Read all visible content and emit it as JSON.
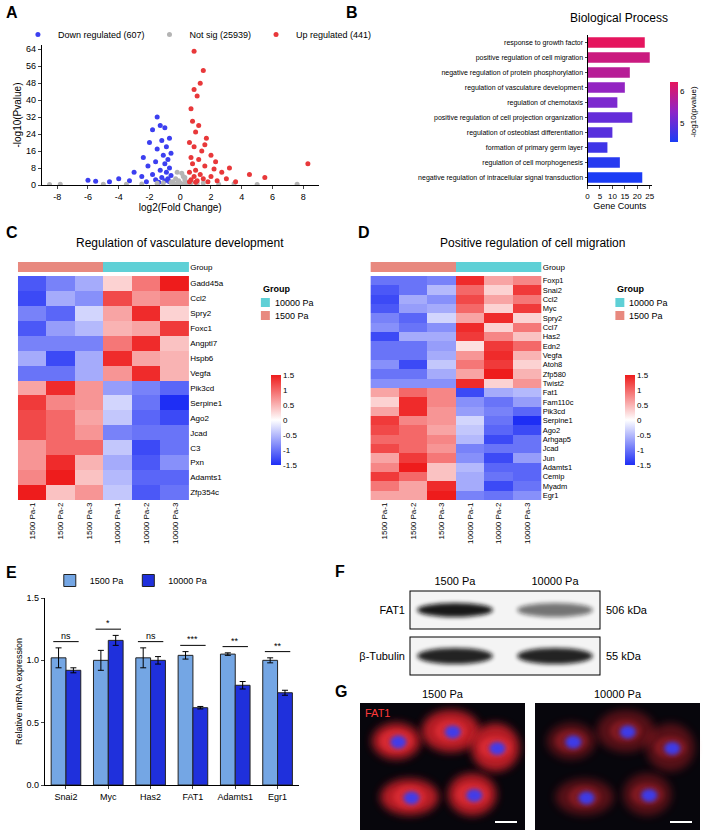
{
  "chart_data": [
    {
      "panel": "A",
      "type": "scatter",
      "x_label": "log2(Fold Change)",
      "y_label": "-log10(Pvalue)",
      "xlim": [
        -9,
        9
      ],
      "xticks": [
        -8,
        -6,
        -4,
        -2,
        0,
        2,
        4,
        6,
        8
      ],
      "ylim": [
        0,
        66
      ],
      "yticks": [
        0,
        8,
        16,
        24,
        32,
        40,
        48,
        56,
        64
      ],
      "legend": "top",
      "series": [
        {
          "name": "Down regulated (607)",
          "color": "#3c3ff0",
          "x": [
            -1.5,
            -1.3,
            -1.0,
            -1.8,
            -0.7,
            -1.2,
            -2.0,
            -0.9,
            -1.5,
            -0.6,
            -1.1,
            -2.4,
            -0.8,
            -1.6,
            -1.0,
            -2.1,
            -0.7,
            -1.3,
            -3.0,
            -0.9,
            -1.8,
            -0.6,
            -2.5,
            -1.2,
            -4.0,
            -0.8,
            -1.6,
            -3.3,
            -5.5,
            -6.0,
            -1.0,
            -0.7,
            -2.2,
            -1.4,
            -4.6
          ],
          "values": [
            32,
            28,
            27,
            26,
            22,
            21,
            20,
            18,
            17,
            15,
            14,
            13,
            12,
            11,
            10,
            9,
            8,
            7,
            6,
            6,
            5,
            4.5,
            4,
            3.5,
            3,
            3,
            2.5,
            2,
            1.8,
            2.2,
            2,
            1.5,
            1.5,
            1.3,
            1.5
          ]
        },
        {
          "name": "Not sig (25939)",
          "color": "#b4b4b4",
          "x": [
            -0.3,
            0.2,
            -0.1,
            0.4,
            -0.5,
            0.1,
            -0.2,
            0.3,
            0.5,
            -0.4,
            0,
            0.2,
            -1.5,
            1.5,
            -2.5,
            2.5,
            -3.5,
            3.5,
            -8.5,
            -7.8,
            7.6,
            -5,
            5,
            -0.6,
            0.7,
            -1.1,
            1.1,
            0.1,
            -0.2,
            0.3
          ],
          "values": [
            3,
            4,
            2,
            1,
            1.5,
            0.5,
            0.8,
            2.5,
            0.6,
            0.4,
            1,
            0.2,
            0.8,
            0.9,
            0.5,
            0.4,
            0.3,
            0.6,
            0.2,
            0.3,
            0.3,
            0.3,
            0.2,
            1.2,
            1.1,
            0.9,
            0.7,
            5.5,
            6,
            3.5
          ]
        },
        {
          "name": "Up regulated (441)",
          "color": "#e8383a",
          "x": [
            0.9,
            1.5,
            1.3,
            0.9,
            1.1,
            0.7,
            0.8,
            1.2,
            1.0,
            1.7,
            0.6,
            0.9,
            1.4,
            2.0,
            0.7,
            1.2,
            2.3,
            0.8,
            1.6,
            3.2,
            1.0,
            0.6,
            2.7,
            1.3,
            4.5,
            0.9,
            2.0,
            1.5,
            3.0,
            0.7,
            1.1,
            2.4,
            0.6,
            1.8,
            8.3,
            3.6,
            1.0,
            5.5,
            2.2,
            1.6
          ],
          "values": [
            63,
            54,
            48,
            45,
            42,
            36,
            30,
            28,
            25,
            22,
            20,
            18,
            16,
            14,
            13,
            12,
            11,
            10,
            9,
            8,
            7,
            6,
            6,
            5,
            5,
            4,
            4,
            3,
            3,
            2.5,
            2,
            2,
            1.5,
            1.5,
            10,
            1.5,
            1.3,
            3.5,
            7.5,
            19
          ]
        }
      ]
    },
    {
      "panel": "B",
      "type": "bar",
      "orientation": "horizontal",
      "title": "Biological Process",
      "x_label": "Gene Counts",
      "categories": [
        "response to growth factor",
        "positive regulation of cell migration",
        "negative regulation of protein phosphorylation",
        "regulation of vasculature development",
        "regulation of chemotaxis",
        "positive regulation of cell projection organization",
        "regulation of osteoblast differentiation",
        "formation of primary germ layer",
        "regulation of cell morphogenesis",
        "negative regulation of intracellular signal transduction"
      ],
      "values": [
        23,
        25,
        17,
        15,
        12,
        18,
        10,
        8,
        13,
        22
      ],
      "color_values": [
        6.3,
        6.0,
        5.8,
        5.4,
        5.2,
        5.0,
        4.9,
        4.7,
        4.5,
        4.4
      ],
      "colorbar": {
        "title": "-log10(pvalue)",
        "range": [
          4.4,
          6.3
        ],
        "ticks": [
          5,
          6
        ]
      },
      "xlim": [
        0,
        26
      ],
      "xticks": [
        0,
        5,
        10,
        15,
        20,
        25
      ]
    },
    {
      "panel": "C",
      "type": "heatmap",
      "title": "Regulation of vasculature development",
      "rows": [
        "Gadd45a",
        "Ccl2",
        "Spry2",
        "Foxc1",
        "Angptl7",
        "Hspb6",
        "Vegfa",
        "Pik3cd",
        "Serpine1",
        "Ago2",
        "Jcad",
        "C3",
        "Pxn",
        "Adamts1",
        "Zfp354c"
      ],
      "columns": [
        "1500 Pa-1",
        "1500 Pa-2",
        "1500 Pa-3",
        "10000 Pa-1",
        "10000 Pa-2",
        "10000 Pa-3"
      ],
      "cells": [
        [
          -1.2,
          -0.9,
          -0.6,
          0.3,
          0.9,
          1.5
        ],
        [
          -1.3,
          -0.6,
          -0.8,
          1.2,
          0.7,
          0.8
        ],
        [
          -0.9,
          -1.1,
          -0.3,
          0.6,
          1.4,
          0.3
        ],
        [
          -1.2,
          -0.7,
          -0.5,
          0.5,
          0.6,
          1.3
        ],
        [
          -0.9,
          -0.9,
          -0.9,
          0.9,
          1.4,
          0.4
        ],
        [
          -0.6,
          -1.3,
          -0.6,
          1.4,
          0.6,
          0.5
        ],
        [
          -1.0,
          -1.0,
          -0.6,
          0.7,
          1.4,
          0.5
        ],
        [
          0.6,
          1.4,
          0.7,
          -0.7,
          -0.9,
          -1.1
        ],
        [
          1.3,
          0.8,
          0.7,
          -0.3,
          -1.0,
          -1.5
        ],
        [
          1.2,
          1.0,
          0.6,
          -0.4,
          -1.1,
          -1.3
        ],
        [
          1.2,
          1.0,
          0.7,
          -0.9,
          -1.0,
          -1.0
        ],
        [
          0.7,
          1.0,
          1.0,
          -0.4,
          -1.3,
          -1.0
        ],
        [
          0.7,
          1.4,
          0.5,
          -0.6,
          -1.2,
          -0.8
        ],
        [
          0.8,
          1.5,
          0.4,
          -0.5,
          -1.1,
          -1.1
        ],
        [
          1.5,
          0.4,
          0.7,
          -0.4,
          -1.2,
          -1.0
        ]
      ],
      "colorbar": {
        "range": [
          -1.5,
          1.5
        ],
        "ticks": [
          -1.5,
          -1,
          -0.5,
          0,
          0.5,
          1,
          1.5
        ]
      },
      "group_title": "Group",
      "column_groups": [
        "1500 Pa",
        "1500 Pa",
        "1500 Pa",
        "10000 Pa",
        "10000 Pa",
        "10000 Pa"
      ],
      "group_legend": [
        {
          "name": "10000 Pa",
          "color": "#5fd0d6"
        },
        {
          "name": "1500 Pa",
          "color": "#e8897f"
        }
      ]
    },
    {
      "panel": "D",
      "type": "heatmap",
      "title": "Positive regulation of cell migration",
      "rows": [
        "Foxp1",
        "Snai2",
        "Ccl2",
        "Myc",
        "Spry2",
        "Ccl7",
        "Has2",
        "Edn2",
        "Vegfa",
        "Atoh8",
        "Zfp580",
        "Twist2",
        "Fat1",
        "Fam110c",
        "Pik3cd",
        "Serpine1",
        "Ago2",
        "Arhgap5",
        "Jcad",
        "Jun",
        "Adamts1",
        "Cemip",
        "Myadm",
        "Egr1"
      ],
      "columns": [
        "1500 Pa-1",
        "1500 Pa-2",
        "1500 Pa-3",
        "10000 Pa-1",
        "10000 Pa-2",
        "10000 Pa-3"
      ],
      "cells": [
        [
          -1.0,
          -1.0,
          -0.9,
          1.4,
          0.6,
          0.8
        ],
        [
          -1.2,
          -1.0,
          -0.5,
          1.0,
          0.3,
          1.3
        ],
        [
          -1.3,
          -0.6,
          -0.8,
          1.2,
          0.6,
          0.9
        ],
        [
          -1.2,
          -0.7,
          -0.6,
          1.0,
          0.3,
          1.3
        ],
        [
          -0.9,
          -1.1,
          -0.3,
          0.6,
          1.4,
          0.3
        ],
        [
          -0.8,
          -1.0,
          -0.8,
          1.4,
          0.3,
          0.9
        ],
        [
          -1.3,
          -0.6,
          -0.6,
          1.3,
          0.8,
          0.4
        ],
        [
          -1.0,
          -1.0,
          -0.7,
          0.2,
          1.3,
          1.0
        ],
        [
          -1.0,
          -1.0,
          -0.6,
          0.7,
          1.4,
          0.5
        ],
        [
          -0.8,
          -1.3,
          -0.4,
          0.9,
          1.3,
          0.3
        ],
        [
          -1.0,
          -1.0,
          -0.6,
          0.6,
          1.5,
          0.5
        ],
        [
          -0.8,
          -0.8,
          -0.8,
          1.4,
          0.3,
          0.7
        ],
        [
          0.6,
          1.0,
          0.8,
          -1.3,
          -0.6,
          -0.5
        ],
        [
          0.3,
          1.4,
          0.8,
          -0.8,
          -1.0,
          -0.7
        ],
        [
          0.6,
          1.4,
          0.7,
          -0.7,
          -0.9,
          -1.1
        ],
        [
          1.3,
          0.8,
          0.7,
          -0.3,
          -1.0,
          -1.5
        ],
        [
          1.2,
          1.0,
          0.6,
          -0.4,
          -1.1,
          -1.3
        ],
        [
          1.0,
          1.0,
          0.8,
          -0.5,
          -1.3,
          -1.0
        ],
        [
          1.2,
          1.0,
          0.7,
          -0.9,
          -1.0,
          -1.0
        ],
        [
          0.6,
          1.3,
          0.9,
          -0.8,
          -1.3,
          -0.7
        ],
        [
          0.8,
          1.5,
          0.4,
          -0.5,
          -1.1,
          -1.1
        ],
        [
          1.3,
          1.0,
          0.4,
          -0.6,
          -1.0,
          -1.1
        ],
        [
          0.9,
          0.6,
          1.4,
          -0.6,
          -1.3,
          -1.0
        ],
        [
          0.6,
          0.6,
          1.5,
          -0.9,
          -1.0,
          -0.8
        ]
      ],
      "colorbar": {
        "range": [
          -1.5,
          1.5
        ],
        "ticks": [
          -1.5,
          -1,
          -0.5,
          0,
          0.5,
          1,
          1.5
        ]
      },
      "group_title": "Group",
      "column_groups": [
        "1500 Pa",
        "1500 Pa",
        "1500 Pa",
        "10000 Pa",
        "10000 Pa",
        "10000 Pa"
      ],
      "group_legend": [
        {
          "name": "10000 Pa",
          "color": "#5fd0d6"
        },
        {
          "name": "1500 Pa",
          "color": "#e8897f"
        }
      ]
    },
    {
      "panel": "E",
      "type": "bar",
      "y_label": "Relative mRNA expression",
      "categories": [
        "Snai2",
        "Myc",
        "Has2",
        "FAT1",
        "Adamts1",
        "Egr1"
      ],
      "ylim": [
        0,
        1.5
      ],
      "yticks": [
        {
          "value": 0,
          "label": "0.0"
        },
        {
          "value": 0.5,
          "label": "0.5"
        },
        {
          "value": 1,
          "label": "1.0"
        },
        {
          "value": 1.5,
          "label": "1.5"
        }
      ],
      "legend": "top",
      "series": [
        {
          "name": "1500 Pa",
          "color": "#74a6e4",
          "values": [
            1.02,
            1.0,
            1.02,
            1.04,
            1.05,
            1.0
          ],
          "errors": [
            0.08,
            0.08,
            0.08,
            0.03,
            0.01,
            0.02
          ]
        },
        {
          "name": "10000 Pa",
          "color": "#1f30dc",
          "values": [
            0.92,
            1.16,
            1.0,
            0.62,
            0.8,
            0.74
          ],
          "errors": [
            0.02,
            0.04,
            0.03,
            0.01,
            0.03,
            0.02
          ]
        }
      ],
      "significance": [
        "ns",
        "*",
        "ns",
        "***",
        "**",
        "**"
      ]
    }
  ],
  "blot": {
    "panel": "F",
    "columns": [
      "1500 Pa",
      "10000 Pa"
    ],
    "rows": [
      {
        "label": "FAT1",
        "size": "506 kDa"
      },
      {
        "label": "β-Tubulin",
        "size": "55 kDa"
      }
    ]
  },
  "images": {
    "panel": "G",
    "columns": [
      "1500 Pa",
      "10000 Pa"
    ],
    "stain": "FAT1"
  }
}
